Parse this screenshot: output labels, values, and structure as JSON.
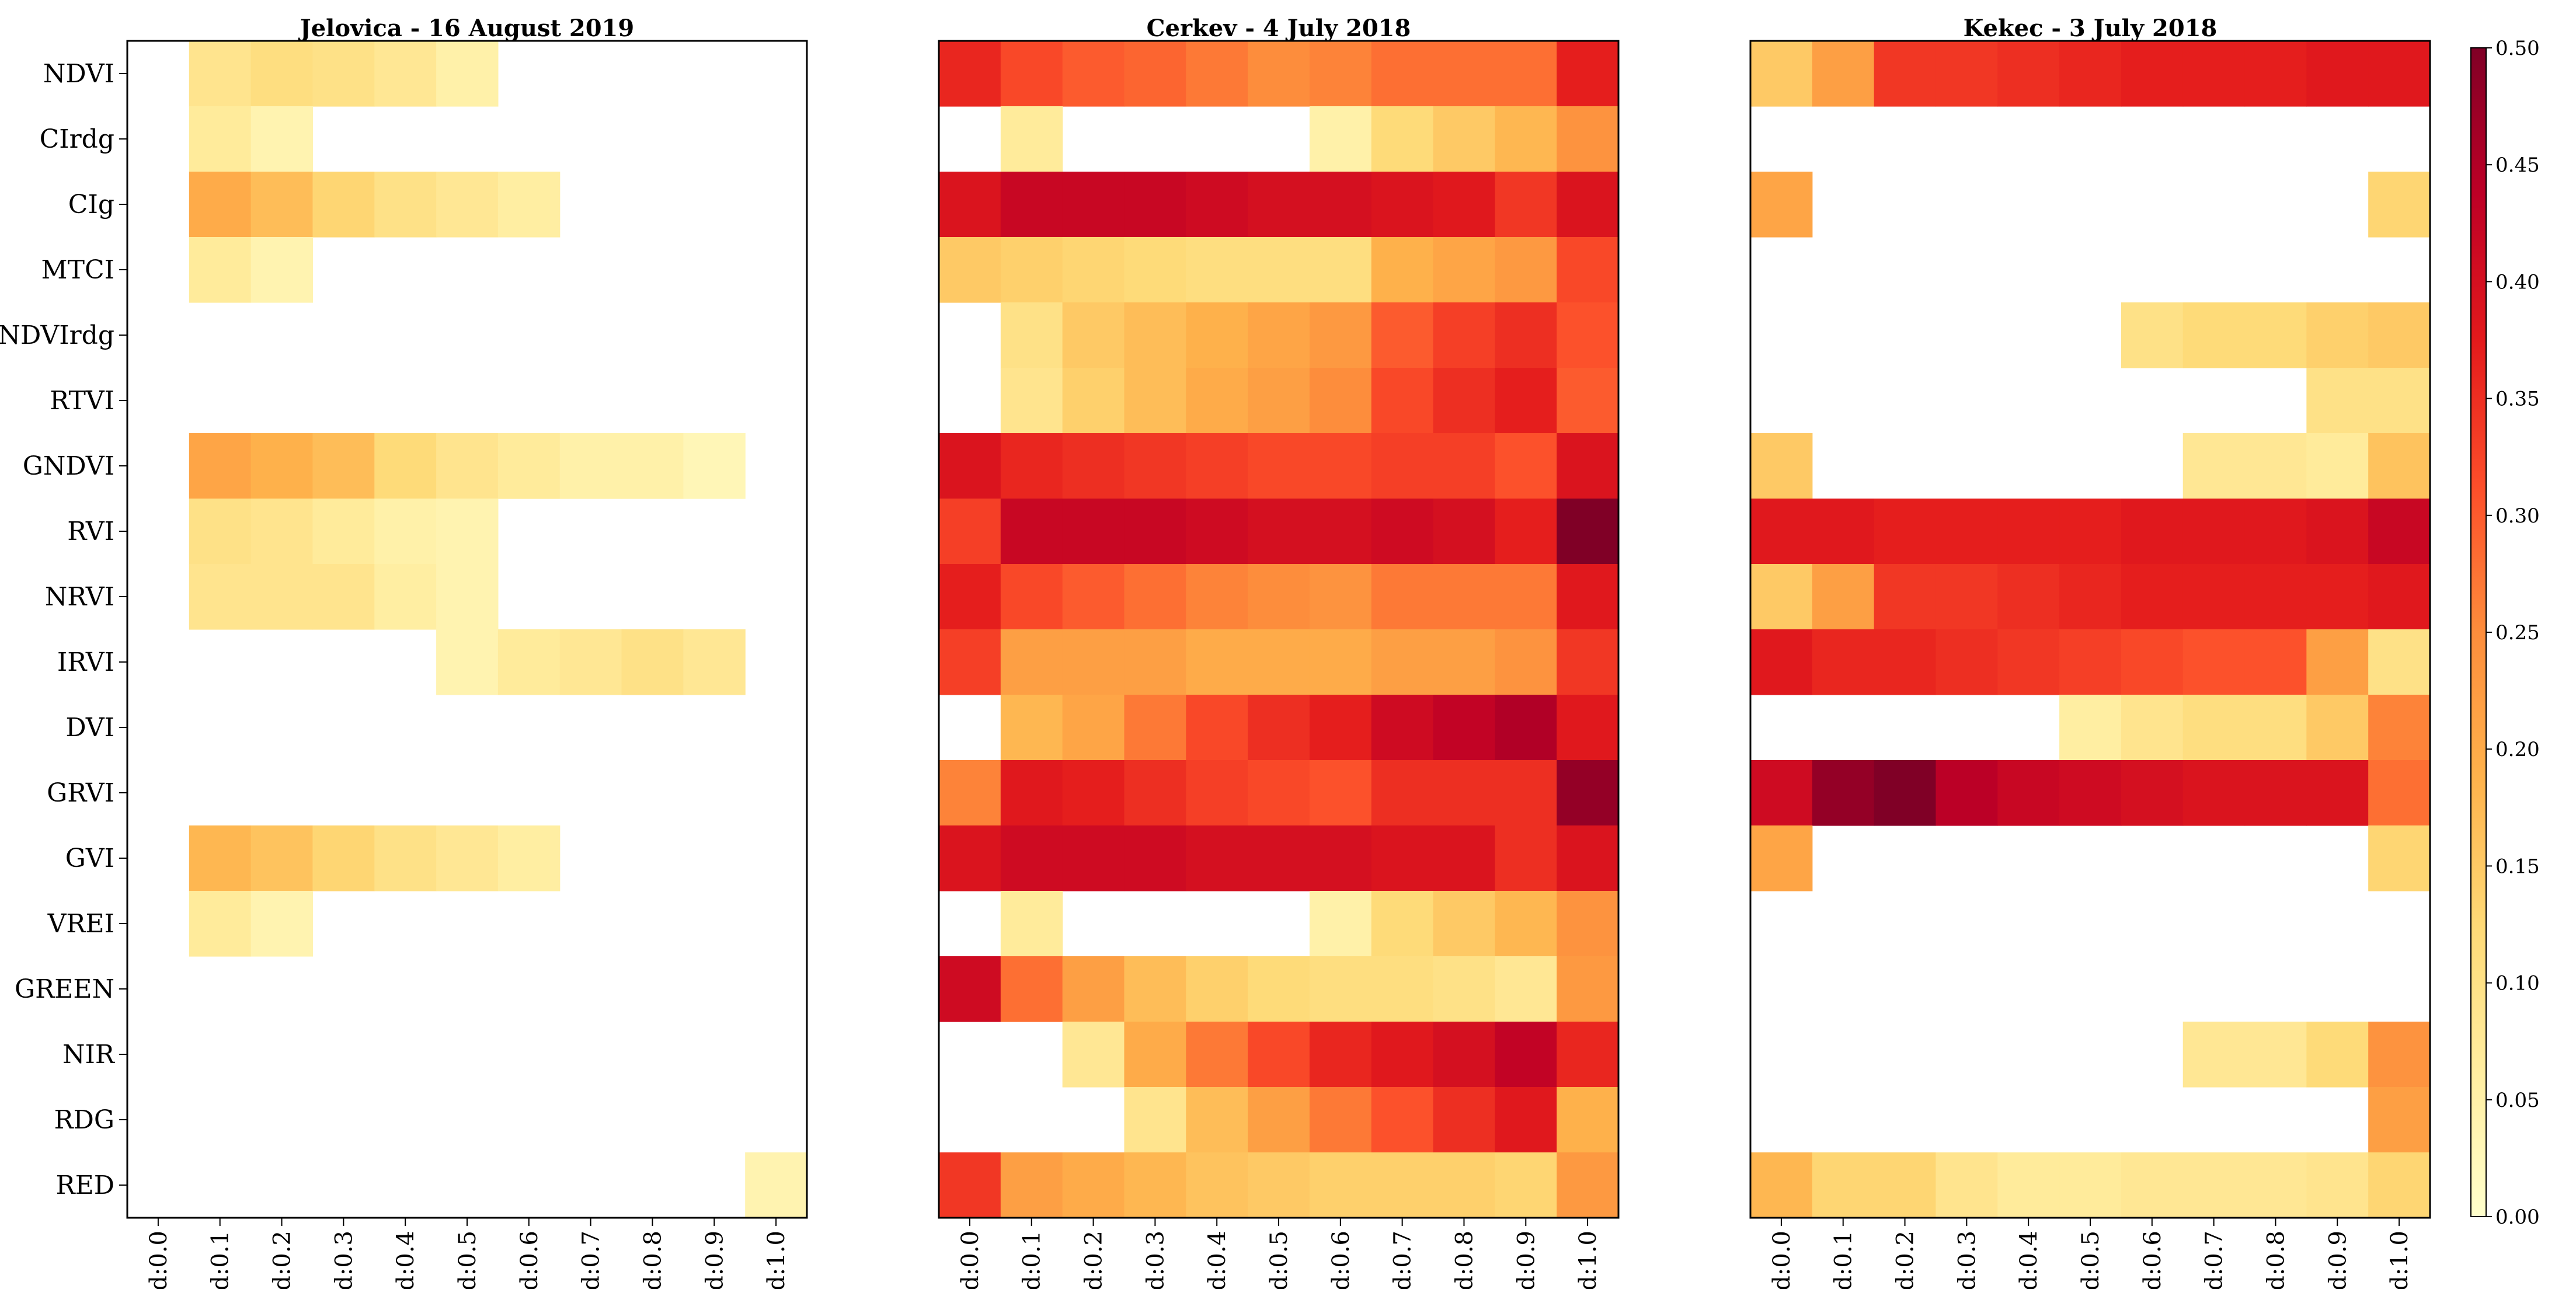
{
  "chart_data": {
    "type": "heatmap",
    "rows": [
      "NDVI",
      "CIrdg",
      "CIg",
      "MTCI",
      "NDVIrdg",
      "RTVI",
      "GNDVI",
      "RVI",
      "NRVI",
      "IRVI",
      "DVI",
      "GRVI",
      "GVI",
      "VREI",
      "GREEN",
      "NIR",
      "RDG",
      "RED"
    ],
    "columns": [
      "d:0.0",
      "d:0.1",
      "d:0.2",
      "d:0.3",
      "d:0.4",
      "d:0.5",
      "d:0.6",
      "d:0.7",
      "d:0.8",
      "d:0.9",
      "d:1.0"
    ],
    "colorbar": {
      "min": 0.0,
      "max": 0.5,
      "ticks": [
        "0.00",
        "0.05",
        "0.10",
        "0.15",
        "0.20",
        "0.25",
        "0.30",
        "0.35",
        "0.40",
        "0.45",
        "0.50"
      ],
      "stops": [
        "#ffffcc",
        "#ffeda0",
        "#fed976",
        "#feb24c",
        "#fd8d3c",
        "#fc4e2a",
        "#e31a1c",
        "#bd0026",
        "#800026"
      ]
    },
    "panels": [
      {
        "title": "Jelovica - 16 August 2019",
        "values": [
          [
            null,
            0.09,
            0.11,
            0.1,
            0.08,
            0.05,
            null,
            null,
            null,
            null,
            null
          ],
          [
            null,
            0.07,
            0.04,
            null,
            null,
            null,
            null,
            null,
            null,
            null,
            null
          ],
          [
            null,
            0.2,
            0.17,
            0.13,
            0.1,
            0.08,
            0.06,
            null,
            null,
            null,
            null
          ],
          [
            null,
            0.07,
            0.04,
            null,
            null,
            null,
            null,
            null,
            null,
            null,
            null
          ],
          [
            null,
            null,
            null,
            null,
            null,
            null,
            null,
            null,
            null,
            null,
            null
          ],
          [
            null,
            null,
            null,
            null,
            null,
            null,
            null,
            null,
            null,
            null,
            null
          ],
          [
            null,
            0.21,
            0.19,
            0.17,
            0.12,
            0.09,
            0.07,
            0.05,
            0.05,
            0.03,
            null
          ],
          [
            null,
            0.1,
            0.09,
            0.07,
            0.05,
            0.04,
            null,
            null,
            null,
            null,
            null
          ],
          [
            null,
            0.09,
            0.09,
            0.09,
            0.06,
            0.04,
            null,
            null,
            null,
            null,
            null
          ],
          [
            null,
            null,
            null,
            null,
            null,
            0.04,
            0.07,
            0.08,
            0.1,
            0.08,
            null
          ],
          [
            null,
            null,
            null,
            null,
            null,
            null,
            null,
            null,
            null,
            null,
            null
          ],
          [
            null,
            null,
            null,
            null,
            null,
            null,
            null,
            null,
            null,
            null,
            null
          ],
          [
            null,
            0.18,
            0.16,
            0.13,
            0.1,
            0.08,
            0.06,
            null,
            null,
            null,
            null
          ],
          [
            null,
            0.07,
            0.04,
            null,
            null,
            null,
            null,
            null,
            null,
            null,
            null
          ],
          [
            null,
            null,
            null,
            null,
            null,
            null,
            null,
            null,
            null,
            null,
            null
          ],
          [
            null,
            null,
            null,
            null,
            null,
            null,
            null,
            null,
            null,
            null,
            null
          ],
          [
            null,
            null,
            null,
            null,
            null,
            null,
            null,
            null,
            null,
            null,
            null
          ],
          [
            null,
            null,
            null,
            null,
            null,
            null,
            null,
            null,
            null,
            null,
            0.04
          ]
        ]
      },
      {
        "title": "Cerkev - 4 July 2018",
        "values": [
          [
            0.36,
            0.32,
            0.3,
            0.29,
            0.27,
            0.25,
            0.26,
            0.28,
            0.28,
            0.28,
            0.37
          ],
          [
            null,
            0.07,
            null,
            null,
            null,
            null,
            0.05,
            0.12,
            0.15,
            0.18,
            0.24
          ],
          [
            0.39,
            0.42,
            0.42,
            0.42,
            0.41,
            0.4,
            0.4,
            0.39,
            0.38,
            0.34,
            0.39
          ],
          [
            0.15,
            0.14,
            0.13,
            0.12,
            0.11,
            0.11,
            0.11,
            0.19,
            0.21,
            0.23,
            0.32
          ],
          [
            null,
            0.1,
            0.15,
            0.17,
            0.19,
            0.21,
            0.23,
            0.3,
            0.33,
            0.35,
            0.31
          ],
          [
            null,
            0.09,
            0.14,
            0.17,
            0.2,
            0.22,
            0.25,
            0.32,
            0.35,
            0.37,
            0.3
          ],
          [
            0.39,
            0.36,
            0.35,
            0.34,
            0.33,
            0.32,
            0.32,
            0.33,
            0.33,
            0.31,
            0.39
          ],
          [
            0.33,
            0.42,
            0.42,
            0.42,
            0.41,
            0.4,
            0.4,
            0.41,
            0.4,
            0.37,
            0.5
          ],
          [
            0.37,
            0.32,
            0.3,
            0.28,
            0.26,
            0.25,
            0.24,
            0.27,
            0.27,
            0.27,
            0.38
          ],
          [
            0.33,
            0.22,
            0.22,
            0.22,
            0.2,
            0.2,
            0.2,
            0.22,
            0.22,
            0.24,
            0.34
          ],
          [
            null,
            0.18,
            0.21,
            0.27,
            0.32,
            0.35,
            0.37,
            0.41,
            0.43,
            0.45,
            0.38
          ],
          [
            0.26,
            0.38,
            0.37,
            0.35,
            0.33,
            0.32,
            0.31,
            0.35,
            0.35,
            0.35,
            0.48
          ],
          [
            0.39,
            0.41,
            0.41,
            0.41,
            0.4,
            0.4,
            0.4,
            0.39,
            0.39,
            0.35,
            0.39
          ],
          [
            null,
            0.07,
            null,
            null,
            null,
            null,
            0.05,
            0.12,
            0.15,
            0.18,
            0.24
          ],
          [
            0.41,
            0.28,
            0.22,
            0.17,
            0.14,
            0.12,
            0.11,
            0.11,
            0.1,
            0.08,
            0.23
          ],
          [
            null,
            null,
            0.08,
            0.2,
            0.27,
            0.32,
            0.36,
            0.38,
            0.4,
            0.43,
            0.36
          ],
          [
            null,
            null,
            null,
            0.09,
            0.17,
            0.22,
            0.27,
            0.31,
            0.35,
            0.38,
            0.19
          ],
          [
            0.34,
            0.22,
            0.2,
            0.18,
            0.16,
            0.15,
            0.14,
            0.14,
            0.14,
            0.13,
            0.23
          ]
        ]
      },
      {
        "title": "Kekec - 3 July 2018",
        "values": [
          [
            0.15,
            0.22,
            0.34,
            0.34,
            0.35,
            0.36,
            0.37,
            0.37,
            0.37,
            0.38,
            0.38
          ],
          [
            null,
            null,
            null,
            null,
            null,
            null,
            null,
            null,
            null,
            null,
            null
          ],
          [
            0.21,
            null,
            null,
            null,
            null,
            null,
            null,
            null,
            null,
            null,
            0.13
          ],
          [
            null,
            null,
            null,
            null,
            null,
            null,
            null,
            null,
            null,
            null,
            null
          ],
          [
            null,
            null,
            null,
            null,
            null,
            null,
            0.1,
            0.12,
            0.12,
            0.14,
            0.15
          ],
          [
            null,
            null,
            null,
            null,
            null,
            null,
            null,
            null,
            null,
            0.1,
            0.1
          ],
          [
            0.15,
            null,
            null,
            null,
            null,
            null,
            null,
            0.08,
            0.08,
            0.07,
            0.16
          ],
          [
            0.38,
            0.38,
            0.37,
            0.37,
            0.37,
            0.37,
            0.38,
            0.38,
            0.38,
            0.39,
            0.42
          ],
          [
            0.15,
            0.22,
            0.34,
            0.34,
            0.35,
            0.36,
            0.37,
            0.37,
            0.37,
            0.37,
            0.38
          ],
          [
            0.38,
            0.36,
            0.36,
            0.35,
            0.34,
            0.33,
            0.32,
            0.31,
            0.31,
            0.22,
            0.1
          ],
          [
            null,
            null,
            null,
            null,
            null,
            0.06,
            0.09,
            0.11,
            0.11,
            0.15,
            0.26
          ],
          [
            0.41,
            0.48,
            0.5,
            0.44,
            0.42,
            0.41,
            0.4,
            0.39,
            0.39,
            0.39,
            0.28
          ],
          [
            0.21,
            null,
            null,
            null,
            null,
            null,
            null,
            null,
            null,
            null,
            0.13
          ],
          [
            null,
            null,
            null,
            null,
            null,
            null,
            null,
            null,
            null,
            null,
            null
          ],
          [
            null,
            null,
            null,
            null,
            null,
            null,
            null,
            null,
            null,
            null,
            null
          ],
          [
            null,
            null,
            null,
            null,
            null,
            null,
            null,
            0.08,
            0.08,
            0.12,
            0.24
          ],
          [
            null,
            null,
            null,
            null,
            null,
            null,
            null,
            null,
            null,
            null,
            0.22
          ],
          [
            0.18,
            0.13,
            0.13,
            0.09,
            0.07,
            0.07,
            0.08,
            0.08,
            0.08,
            0.09,
            0.13
          ]
        ]
      }
    ]
  }
}
